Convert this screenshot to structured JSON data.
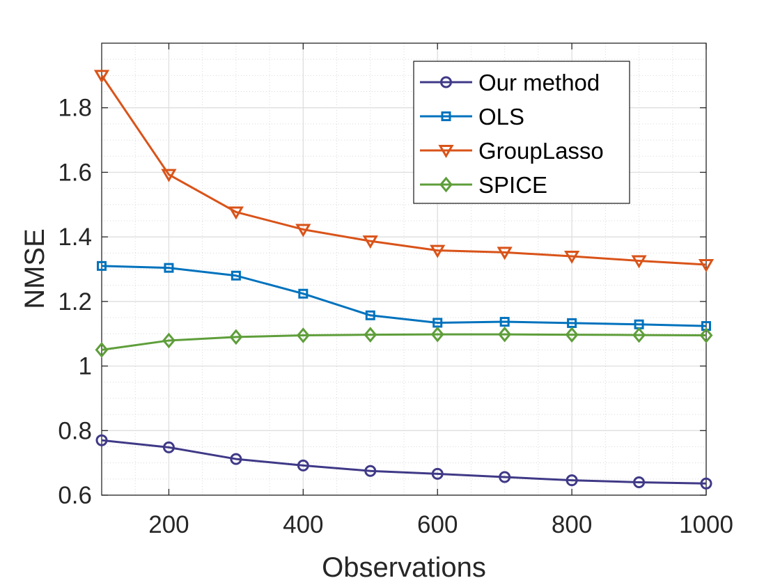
{
  "chart_data": {
    "type": "line",
    "title": "",
    "xlabel": "Observations",
    "ylabel": "NMSE",
    "xlim": [
      100,
      1000
    ],
    "ylim": [
      0.6,
      2.0
    ],
    "x": [
      100,
      200,
      300,
      400,
      500,
      600,
      700,
      800,
      900,
      1000
    ],
    "xticks": [
      200,
      400,
      600,
      800,
      1000
    ],
    "xtick_labels": [
      "200",
      "400",
      "600",
      "800",
      "1000"
    ],
    "yticks": [
      0.6,
      0.8,
      1.0,
      1.2,
      1.4,
      1.6,
      1.8
    ],
    "ytick_labels": [
      "0.6",
      "0.8",
      "1",
      "1.2",
      "1.4",
      "1.6",
      "1.8"
    ],
    "grid": true,
    "minor_grid": true,
    "legend_position": "top-right",
    "series": [
      {
        "name": "Our method",
        "color": "#3f3987",
        "marker": "circle",
        "values": [
          0.77,
          0.748,
          0.712,
          0.692,
          0.675,
          0.666,
          0.656,
          0.646,
          0.64,
          0.636
        ]
      },
      {
        "name": "OLS",
        "color": "#0072bd",
        "marker": "square",
        "values": [
          1.31,
          1.304,
          1.28,
          1.224,
          1.157,
          1.134,
          1.137,
          1.133,
          1.129,
          1.124
        ]
      },
      {
        "name": "GroupLasso",
        "color": "#d95319",
        "marker": "triangle-down",
        "values": [
          1.9,
          1.593,
          1.477,
          1.423,
          1.387,
          1.358,
          1.352,
          1.34,
          1.326,
          1.314
        ]
      },
      {
        "name": "SPICE",
        "color": "#5e9e3a",
        "marker": "diamond",
        "values": [
          1.05,
          1.079,
          1.09,
          1.095,
          1.097,
          1.098,
          1.098,
          1.097,
          1.096,
          1.095
        ]
      }
    ]
  }
}
